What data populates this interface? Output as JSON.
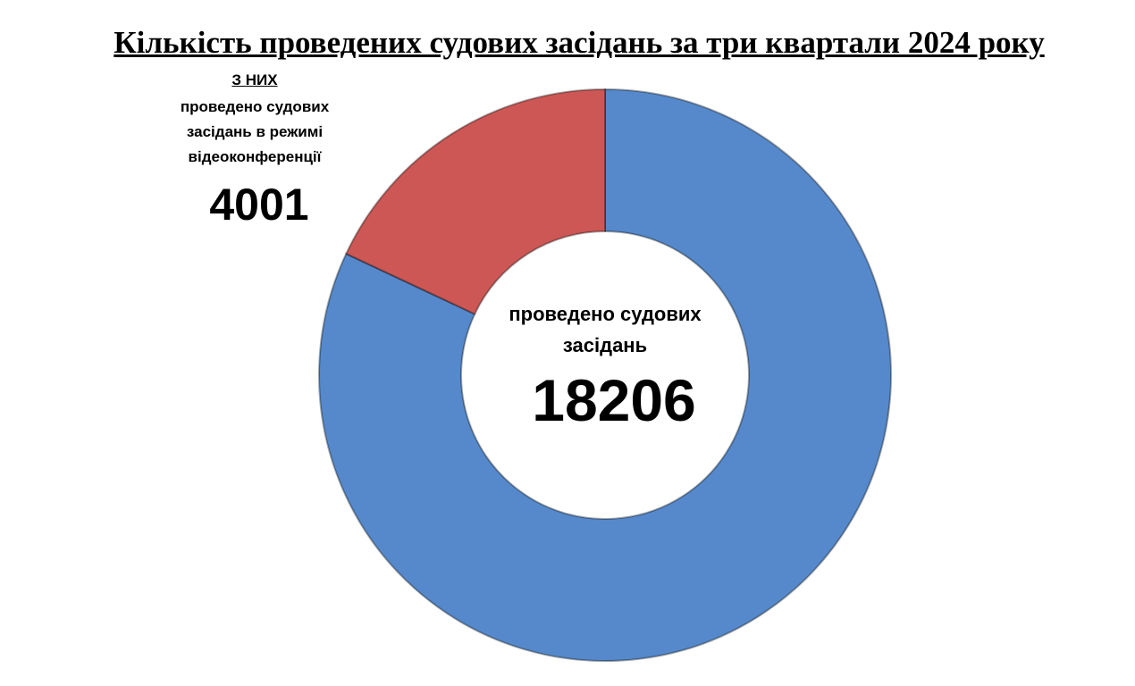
{
  "chart_data": {
    "type": "donut",
    "title": "Кількість проведених судових засідань за три квартали 2024 року",
    "annotation": "з них",
    "categories": [
      "проведено судових засідань",
      "проведено судових засідань в режимі відеоконференції"
    ],
    "values": [
      18206,
      4001
    ],
    "colors": [
      "#5589cb",
      "#cd5755"
    ]
  }
}
